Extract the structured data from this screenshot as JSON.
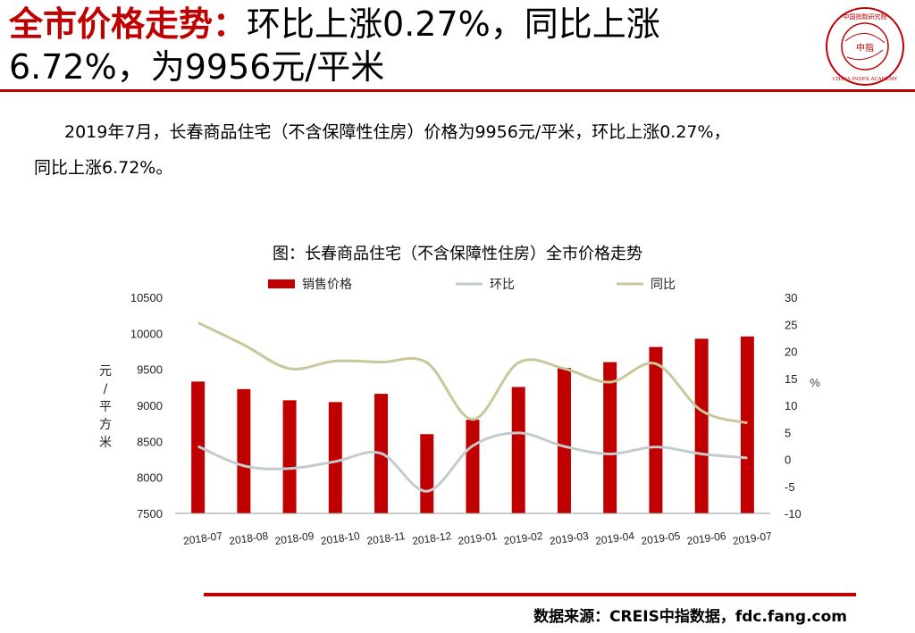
{
  "header": {
    "title_highlight": "全市价格走势：",
    "title_rest": "环比上涨0.27%，同比上涨",
    "title_line2": "6.72%，为9956元/平米"
  },
  "logo": {
    "org_name_cn": "中国指数研究院",
    "org_name_en": "CHINA INDEX ACADEMY",
    "center_text": "中指",
    "brand_color": "#c00000"
  },
  "intro": {
    "line1": "2019年7月，长春商品住宅（不含保障性住房）价格为9956元/平米，环比上涨0.27%，",
    "line2": "同比上涨6.72%。"
  },
  "chart_data": {
    "type": "bar",
    "title": "图：长春商品住宅（不含保障性住房）全市价格走势",
    "categories": [
      "2018-07",
      "2018-08",
      "2018-09",
      "2018-10",
      "2018-11",
      "2018-12",
      "2019-01",
      "2019-02",
      "2019-03",
      "2019-04",
      "2019-05",
      "2019-06",
      "2019-07"
    ],
    "series": [
      {
        "name": "销售价格",
        "type": "bar",
        "axis": "left",
        "color": "#c00000",
        "values": [
          9330,
          9225,
          9070,
          9045,
          9160,
          8600,
          8800,
          9255,
          9520,
          9600,
          9810,
          9925,
          9956
        ]
      },
      {
        "name": "环比",
        "type": "line",
        "axis": "right",
        "color": "#c4cbcc",
        "values": [
          2.4,
          -1.2,
          -1.7,
          -0.4,
          1.1,
          -5.9,
          2.5,
          4.9,
          2.4,
          1.0,
          2.3,
          1.0,
          0.27
        ]
      },
      {
        "name": "同比",
        "type": "line",
        "axis": "right",
        "color": "#c8c89a",
        "values": [
          25.3,
          21.2,
          16.8,
          18.2,
          18.0,
          17.9,
          7.4,
          17.9,
          16.8,
          14.3,
          17.7,
          9.0,
          6.72
        ]
      }
    ],
    "ylabel_left": "元/平方米",
    "ylabel_right": "%",
    "ylim_left": [
      7500,
      10500
    ],
    "yticks_left": [
      7500,
      8000,
      8500,
      9000,
      9500,
      10000,
      10500
    ],
    "ylim_right": [
      -10,
      30
    ],
    "yticks_right": [
      -10,
      -5,
      0,
      5,
      10,
      15,
      20,
      25,
      30
    ],
    "legend_position": "top",
    "grid": false
  },
  "source": {
    "text": "数据来源：CREIS中指数据，fdc.fang.com"
  }
}
